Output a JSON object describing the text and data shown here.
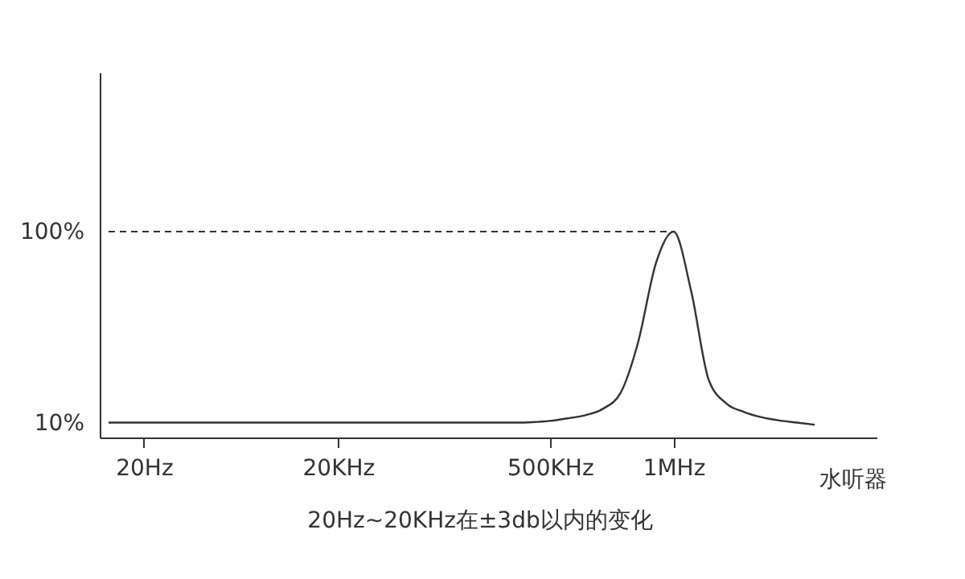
{
  "chart_data": {
    "type": "line",
    "xlabel": "水听器",
    "annotations": [
      "20Hz~20KHz在±3db以内的变化"
    ],
    "categories": [
      null,
      null,
      "20Hz",
      null,
      null,
      null,
      null,
      null,
      null,
      null,
      null,
      null,
      null,
      "20KHz",
      null,
      null,
      null,
      null,
      null,
      null,
      null,
      null,
      null,
      null,
      null,
      "500KHz",
      null,
      null,
      null,
      null,
      null,
      null,
      "1MHz",
      null,
      null,
      null,
      null,
      null,
      null,
      null,
      null,
      null,
      null,
      null
    ],
    "ylim": [
      3,
      175
    ],
    "yticks": [
      {
        "value": 10,
        "label": "10%"
      },
      {
        "value": 100,
        "label": "100%"
      }
    ],
    "series": [
      {
        "color": "#333333",
        "values": [
          10,
          10,
          10,
          10,
          10,
          10,
          10,
          10,
          10,
          10,
          10,
          10,
          10,
          10,
          10,
          10,
          10,
          10,
          10,
          10,
          10,
          10,
          10,
          10,
          10.2,
          10.8,
          12,
          13.5,
          16.5,
          24,
          48,
          85,
          100,
          72,
          30,
          19,
          15,
          12.5,
          11,
          10,
          9,
          null,
          null,
          null
        ]
      }
    ],
    "ref_lines": [
      {
        "axis": "y",
        "value": 100,
        "color": "#333333",
        "line_style": "dashed"
      }
    ],
    "grid": false,
    "marker": "none",
    "line_style": "solid"
  }
}
